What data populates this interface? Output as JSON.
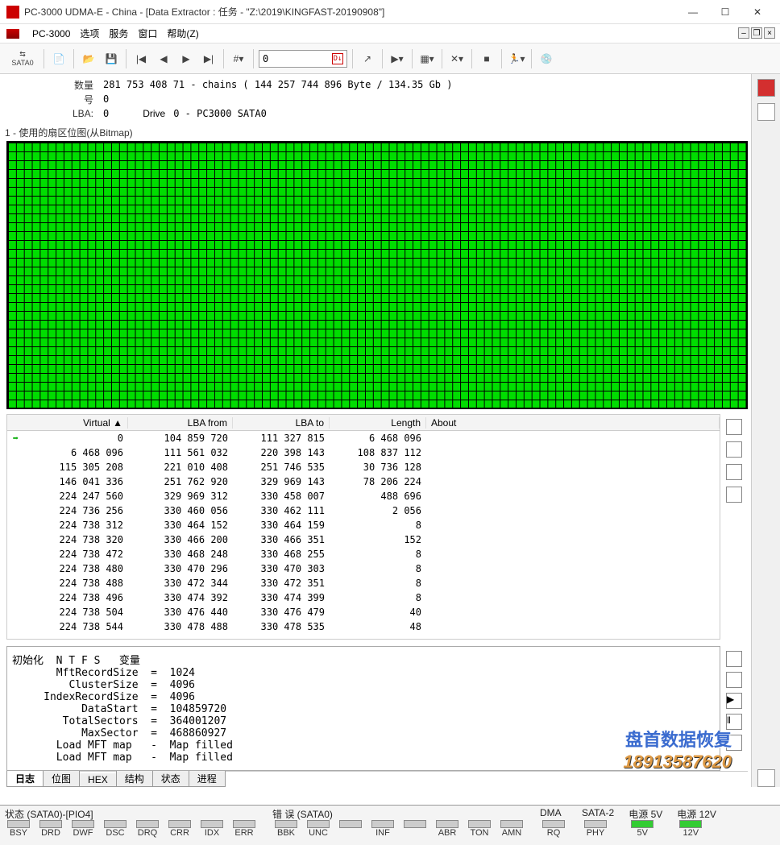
{
  "title": "PC-3000 UDMA-E - China - [Data Extractor : 任务 - \"Z:\\2019\\KINGFAST-20190908\"]",
  "menu": {
    "app": "PC-3000",
    "items": [
      "选项",
      "服务",
      "窗口",
      "帮助(Z)"
    ]
  },
  "toolbar": {
    "sata_label": "SATA0",
    "input_value": "0",
    "input_badge": "D↓"
  },
  "info": {
    "count_label": "数量",
    "count_value": "281 753 408   71 - chains  ( 144 257 744 896 Byte /   134.35 Gb )",
    "num_label": "号",
    "num_value": "0",
    "lba_label": "LBA:",
    "lba_value": "0",
    "drive_label": "Drive",
    "drive_value": "0 - PC3000 SATA0"
  },
  "bitmap_title": "1 - 使用的扇区位图(从Bitmap)",
  "table": {
    "columns": [
      "Virtual  ▲",
      "LBA from",
      "LBA to",
      "Length",
      "About"
    ],
    "rows": [
      [
        "0",
        "104 859 720",
        "111 327 815",
        "6 468 096",
        ""
      ],
      [
        "6 468 096",
        "111 561 032",
        "220 398 143",
        "108 837 112",
        ""
      ],
      [
        "115 305 208",
        "221 010 408",
        "251 746 535",
        "30 736 128",
        ""
      ],
      [
        "146 041 336",
        "251 762 920",
        "329 969 143",
        "78 206 224",
        ""
      ],
      [
        "224 247 560",
        "329 969 312",
        "330 458 007",
        "488 696",
        ""
      ],
      [
        "224 736 256",
        "330 460 056",
        "330 462 111",
        "2 056",
        ""
      ],
      [
        "224 738 312",
        "330 464 152",
        "330 464 159",
        "8",
        ""
      ],
      [
        "224 738 320",
        "330 466 200",
        "330 466 351",
        "152",
        ""
      ],
      [
        "224 738 472",
        "330 468 248",
        "330 468 255",
        "8",
        ""
      ],
      [
        "224 738 480",
        "330 470 296",
        "330 470 303",
        "8",
        ""
      ],
      [
        "224 738 488",
        "330 472 344",
        "330 472 351",
        "8",
        ""
      ],
      [
        "224 738 496",
        "330 474 392",
        "330 474 399",
        "8",
        ""
      ],
      [
        "224 738 504",
        "330 476 440",
        "330 476 479",
        "40",
        ""
      ],
      [
        "224 738 544",
        "330 478 488",
        "330 478 535",
        "48",
        ""
      ]
    ]
  },
  "log": "初始化  N T F S   变量\n       MftRecordSize  =  1024\n         ClusterSize  =  4096\n     IndexRecordSize  =  4096\n           DataStart  =  104859720\n        TotalSectors  =  364001207\n           MaxSector  =  468860927\n       Load MFT map   -  Map filled\n       Load MFT map   -  Map filled",
  "log_tabs": [
    "日志",
    "位图",
    "HEX",
    "结构",
    "状态",
    "进程"
  ],
  "status": {
    "g1": {
      "title": "状态 (SATA0)-[PIO4]",
      "leds": [
        "BSY",
        "DRD",
        "DWF",
        "DSC",
        "DRQ",
        "CRR",
        "IDX",
        "ERR"
      ]
    },
    "g2": {
      "title": "错 误 (SATA0)",
      "leds": [
        "BBK",
        "UNC",
        "",
        "INF",
        "",
        "ABR",
        "TON",
        "AMN"
      ]
    },
    "g3": {
      "title": "DMA",
      "leds": [
        "RQ"
      ]
    },
    "g4": {
      "title": "SATA-2",
      "leds": [
        "PHY"
      ]
    },
    "g5": {
      "title": "电源 5V",
      "leds": [
        "5V"
      ],
      "green": true
    },
    "g6": {
      "title": "电源 12V",
      "leds": [
        "12V"
      ],
      "green": true
    }
  },
  "watermark": {
    "line1": "盘首数据恢复",
    "line2": "18913587620"
  }
}
